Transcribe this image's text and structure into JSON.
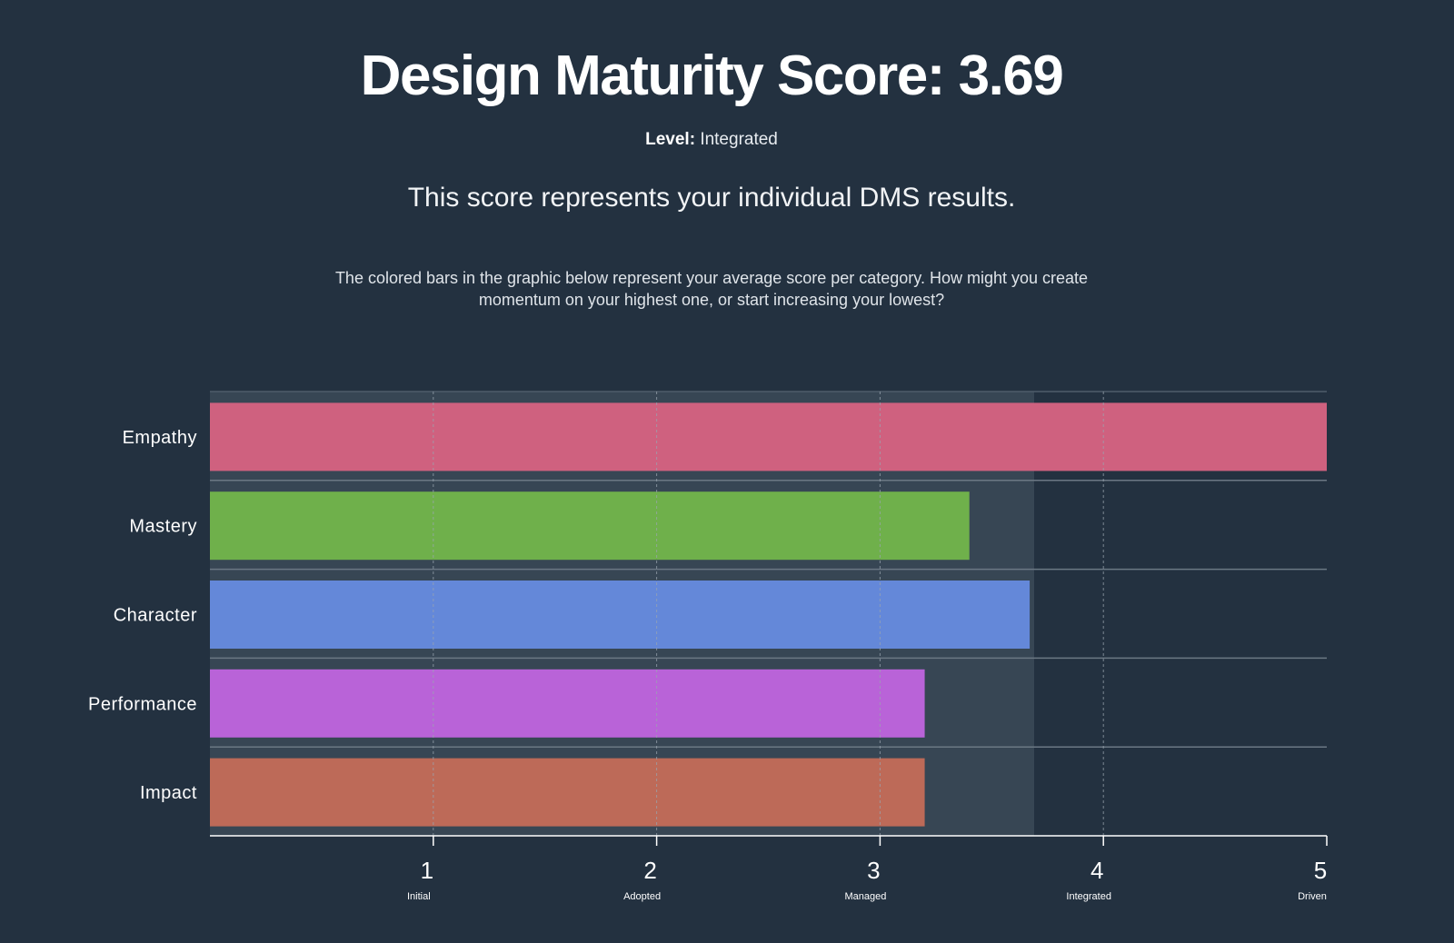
{
  "header": {
    "title": "Design Maturity Score: 3.69",
    "level_label": "Level:",
    "level_value": "Integrated",
    "subtitle": "This score represents your individual DMS results.",
    "description": "The colored bars in the graphic below represent your average score per category. How might you create momentum on your highest one, or start increasing your lowest?"
  },
  "colors": {
    "background": "#233140",
    "score_band": "#374654",
    "empathy": "#cf617f",
    "mastery": "#6fb04b",
    "character": "#6488d9",
    "performance": "#b963d8",
    "impact": "#bd6a58"
  },
  "chart_data": {
    "type": "bar",
    "orientation": "horizontal",
    "title": "",
    "overall_score": 3.69,
    "categories": [
      "Empathy",
      "Mastery",
      "Character",
      "Performance",
      "Impact"
    ],
    "values": [
      5.0,
      3.4,
      3.67,
      3.2,
      3.2
    ],
    "xlim": [
      0,
      5
    ],
    "x_ticks": [
      {
        "value": 1,
        "label": "1",
        "sublabel": "Initial"
      },
      {
        "value": 2,
        "label": "2",
        "sublabel": "Adopted"
      },
      {
        "value": 3,
        "label": "3",
        "sublabel": "Managed"
      },
      {
        "value": 4,
        "label": "4",
        "sublabel": "Integrated"
      },
      {
        "value": 5,
        "label": "5",
        "sublabel": "Driven"
      }
    ],
    "grid": true,
    "legend": "none"
  }
}
